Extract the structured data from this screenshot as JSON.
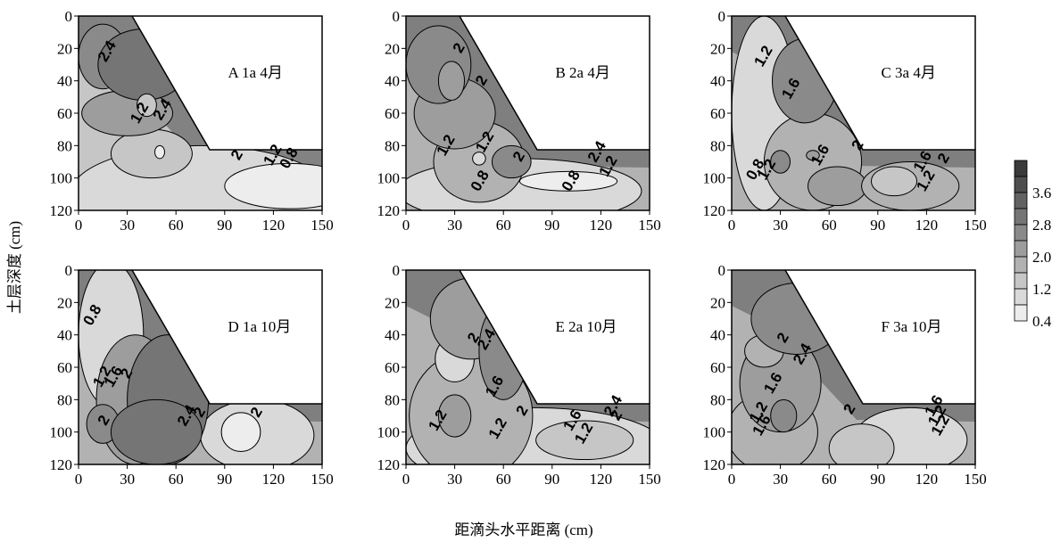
{
  "chart_data": {
    "type": "heatmap",
    "xlabel": "距滴头水平距离 (cm)",
    "ylabel": "土层深度 (cm)",
    "x_ticks": [
      0,
      30,
      60,
      90,
      120,
      150
    ],
    "y_ticks": [
      0,
      20,
      40,
      60,
      80,
      100,
      120
    ],
    "xlim": [
      0,
      150
    ],
    "ylim": [
      0,
      120
    ],
    "y_inverted": true,
    "legend": {
      "placement": "right",
      "labels": [
        "3.6",
        "2.8",
        "2.0",
        "1.2",
        "0.4"
      ],
      "levels": [
        0.4,
        0.8,
        1.2,
        1.6,
        2.0,
        2.4,
        2.8,
        3.2,
        3.6,
        4.0
      ],
      "colors": [
        "#ededed",
        "#d9d9d9",
        "#c6c6c6",
        "#b2b2b2",
        "#9d9d9d",
        "#8a8a8a",
        "#757575",
        "#626262",
        "#4e4e4e",
        "#3a3a3a"
      ]
    },
    "panels": [
      {
        "title": "A 1a 4月",
        "contour_labels": [
          {
            "text": "2.4",
            "x": 18,
            "y": 22
          },
          {
            "text": "1.2",
            "x": 38,
            "y": 60
          },
          {
            "text": "2.4",
            "x": 52,
            "y": 58
          },
          {
            "text": "2",
            "x": 98,
            "y": 86
          },
          {
            "text": "1.2",
            "x": 120,
            "y": 86
          },
          {
            "text": "0.8",
            "x": 130,
            "y": 88
          }
        ]
      },
      {
        "title": "B 2a 4月",
        "contour_labels": [
          {
            "text": "2",
            "x": 33,
            "y": 20
          },
          {
            "text": "2",
            "x": 47,
            "y": 40
          },
          {
            "text": "1.2",
            "x": 25,
            "y": 80
          },
          {
            "text": "1.2",
            "x": 49,
            "y": 78
          },
          {
            "text": "2",
            "x": 70,
            "y": 87
          },
          {
            "text": "0.8",
            "x": 46,
            "y": 102
          },
          {
            "text": "2.4",
            "x": 118,
            "y": 84
          },
          {
            "text": "1.2",
            "x": 125,
            "y": 93
          },
          {
            "text": "0.8",
            "x": 102,
            "y": 102
          }
        ]
      },
      {
        "title": "C 3a 4月",
        "contour_labels": [
          {
            "text": "1.2",
            "x": 20,
            "y": 25
          },
          {
            "text": "1.6",
            "x": 37,
            "y": 45
          },
          {
            "text": "2",
            "x": 78,
            "y": 80
          },
          {
            "text": "1.6",
            "x": 55,
            "y": 86
          },
          {
            "text": "0.8",
            "x": 15,
            "y": 95
          },
          {
            "text": "1.2",
            "x": 22,
            "y": 95
          },
          {
            "text": "1.6",
            "x": 118,
            "y": 90
          },
          {
            "text": "2",
            "x": 131,
            "y": 88
          },
          {
            "text": "1.2",
            "x": 120,
            "y": 102
          }
        ]
      },
      {
        "title": "D 1a 10月",
        "contour_labels": [
          {
            "text": "0.8",
            "x": 9,
            "y": 28
          },
          {
            "text": "1.2",
            "x": 15,
            "y": 66
          },
          {
            "text": "1.6",
            "x": 22,
            "y": 66
          },
          {
            "text": "2",
            "x": 30,
            "y": 64
          },
          {
            "text": "2",
            "x": 16,
            "y": 93
          },
          {
            "text": "2.4",
            "x": 67,
            "y": 90
          },
          {
            "text": "2",
            "x": 75,
            "y": 88
          },
          {
            "text": "2",
            "x": 110,
            "y": 88
          }
        ]
      },
      {
        "title": "E 2a 10月",
        "contour_labels": [
          {
            "text": "2",
            "x": 42,
            "y": 42
          },
          {
            "text": "2.4",
            "x": 50,
            "y": 43
          },
          {
            "text": "1.6",
            "x": 55,
            "y": 72
          },
          {
            "text": "1.2",
            "x": 20,
            "y": 93
          },
          {
            "text": "1.2",
            "x": 57,
            "y": 98
          },
          {
            "text": "2",
            "x": 72,
            "y": 87
          },
          {
            "text": "1.6",
            "x": 103,
            "y": 93
          },
          {
            "text": "1.2",
            "x": 110,
            "y": 101
          },
          {
            "text": "2",
            "x": 130,
            "y": 90
          },
          {
            "text": "2.4",
            "x": 128,
            "y": 84
          }
        ]
      },
      {
        "title": "F 3a 10月",
        "contour_labels": [
          {
            "text": "2",
            "x": 32,
            "y": 42
          },
          {
            "text": "2.4",
            "x": 44,
            "y": 52
          },
          {
            "text": "1.6",
            "x": 26,
            "y": 70
          },
          {
            "text": "1.2",
            "x": 17,
            "y": 88
          },
          {
            "text": "1.6",
            "x": 19,
            "y": 96
          },
          {
            "text": "2",
            "x": 73,
            "y": 86
          },
          {
            "text": "1.2",
            "x": 127,
            "y": 90
          },
          {
            "text": "1.6",
            "x": 125,
            "y": 84
          },
          {
            "text": "1.2",
            "x": 129,
            "y": 96
          }
        ]
      }
    ]
  }
}
